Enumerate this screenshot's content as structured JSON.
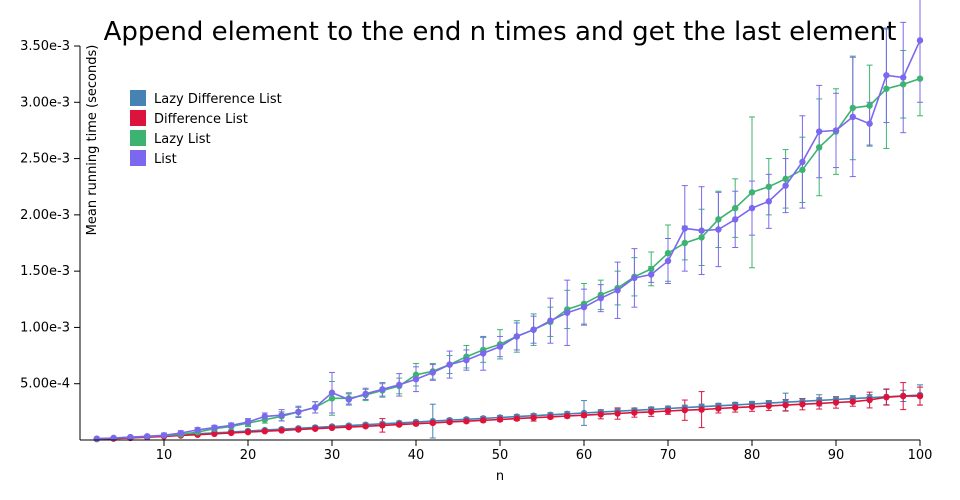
{
  "chart_data": {
    "type": "line",
    "title": "Append element to the end n times and get the last element",
    "xlabel": "n",
    "ylabel": "Mean running time (seconds)",
    "xlim": [
      0,
      100
    ],
    "ylim": [
      0,
      0.0035
    ],
    "x_ticks": [
      10,
      20,
      30,
      40,
      50,
      60,
      70,
      80,
      90,
      100
    ],
    "x_tick_labels": [
      "10",
      "20",
      "30",
      "40",
      "50",
      "60",
      "70",
      "80",
      "90",
      "100"
    ],
    "y_ticks": [
      0.0005,
      0.001,
      0.0015,
      0.002,
      0.0025,
      0.003,
      0.0035
    ],
    "y_tick_labels": [
      "5.00e-4",
      "1.00e-3",
      "1.50e-3",
      "2.00e-3",
      "2.50e-3",
      "3.00e-3",
      "3.50e-3"
    ],
    "grid": false,
    "legend_position": "top-left",
    "x": [
      2,
      4,
      6,
      8,
      10,
      12,
      14,
      16,
      18,
      20,
      22,
      24,
      26,
      28,
      30,
      32,
      34,
      36,
      38,
      40,
      42,
      44,
      46,
      48,
      50,
      52,
      54,
      56,
      58,
      60,
      62,
      64,
      66,
      68,
      70,
      72,
      74,
      76,
      78,
      80,
      82,
      84,
      86,
      88,
      90,
      92,
      94,
      96,
      98,
      100
    ],
    "series": [
      {
        "name": "Lazy Difference List",
        "color": "#4682b4",
        "values": [
          1e-05,
          1.5e-05,
          2.2e-05,
          3e-05,
          3.8e-05,
          4.6e-05,
          5.5e-05,
          6.3e-05,
          7.1e-05,
          8e-05,
          8.8e-05,
          9.6e-05,
          0.000104,
          0.000112,
          0.00012,
          0.000128,
          0.000136,
          0.000144,
          0.000152,
          0.00016,
          0.000168,
          0.000176,
          0.000184,
          0.000192,
          0.0002,
          0.000208,
          0.000216,
          0.000224,
          0.000232,
          0.00024,
          0.000248,
          0.000256,
          0.000264,
          0.000272,
          0.00028,
          0.000288,
          0.000296,
          0.000304,
          0.000312,
          0.00032,
          0.000328,
          0.000336,
          0.000344,
          0.000352,
          0.00036,
          0.000368,
          0.000376,
          0.000384,
          0.000392,
          0.0004
        ],
        "errors": [
          2e-06,
          3e-06,
          4e-06,
          6e-06,
          8e-06,
          8e-06,
          9e-06,
          1e-05,
          1e-05,
          1.1e-05,
          1.1e-05,
          1.2e-05,
          1.2e-05,
          1.3e-05,
          1.3e-05,
          1.4e-05,
          1.4e-05,
          1.4e-05,
          1.5e-05,
          1.5e-05,
          0.00015,
          1.6e-05,
          1.6e-05,
          1.6e-05,
          1.7e-05,
          1.7e-05,
          1.8e-05,
          1.8e-05,
          1.9e-05,
          0.00011,
          1.9e-05,
          2e-05,
          2e-05,
          2.1e-05,
          2.1e-05,
          2.1e-05,
          2.2e-05,
          2.2e-05,
          2.3e-05,
          2.3e-05,
          2.3e-05,
          8e-05,
          2.4e-05,
          5e-05,
          2.5e-05,
          2.6e-05,
          2.7e-05,
          7e-05,
          5e-05,
          9e-05
        ]
      },
      {
        "name": "Difference List",
        "color": "#dc143c",
        "values": [
          8e-06,
          1.2e-05,
          1.8e-05,
          2.5e-05,
          3.2e-05,
          4e-05,
          4.7e-05,
          5.5e-05,
          6.3e-05,
          7e-05,
          7.8e-05,
          8.5e-05,
          9.3e-05,
          0.0001,
          0.000108,
          0.000115,
          0.000122,
          0.00013,
          0.000137,
          0.000145,
          0.000152,
          0.00016,
          0.000167,
          0.000175,
          0.000182,
          0.00019,
          0.000198,
          0.000205,
          0.000213,
          0.00022,
          0.000228,
          0.000235,
          0.000243,
          0.00025,
          0.000258,
          0.000265,
          0.00027,
          0.00028,
          0.000288,
          0.000295,
          0.000303,
          0.00031,
          0.000318,
          0.000325,
          0.000333,
          0.00034,
          0.000355,
          0.00038,
          0.00039,
          0.00039
        ],
        "errors": [
          2e-06,
          2e-06,
          3e-06,
          4e-06,
          5e-06,
          6e-06,
          6e-06,
          7e-06,
          7e-06,
          8e-06,
          8e-06,
          9e-06,
          9e-06,
          1e-05,
          1e-05,
          1.1e-05,
          1.2e-05,
          6e-05,
          1.2e-05,
          1.3e-05,
          1.3e-05,
          1.4e-05,
          1.4e-05,
          1.5e-05,
          1.5e-05,
          1.6e-05,
          3e-05,
          1.6e-05,
          1.7e-05,
          1.7e-05,
          4e-05,
          5e-05,
          4e-05,
          4e-05,
          3e-05,
          9e-05,
          0.00016,
          4e-05,
          4e-05,
          4e-05,
          4e-05,
          5e-05,
          5e-05,
          5e-05,
          5e-05,
          4e-05,
          7e-05,
          7e-05,
          0.00012,
          8e-05
        ]
      },
      {
        "name": "Lazy List",
        "color": "#3cb371",
        "values": [
          1e-05,
          1.8e-05,
          2.5e-05,
          3.2e-05,
          4e-05,
          5e-05,
          7e-05,
          0.0001,
          0.00012,
          0.00015,
          0.00018,
          0.00021,
          0.00025,
          0.00029,
          0.00037,
          0.00037,
          0.0004,
          0.00044,
          0.00048,
          0.00058,
          0.00061,
          0.00067,
          0.00074,
          0.0008,
          0.00085,
          0.00092,
          0.00098,
          0.00105,
          0.00116,
          0.00121,
          0.00129,
          0.00135,
          0.00145,
          0.00152,
          0.00166,
          0.00175,
          0.0018,
          0.00196,
          0.00206,
          0.0022,
          0.00225,
          0.00232,
          0.0024,
          0.0026,
          0.00274,
          0.00295,
          0.00297,
          0.00312,
          0.00316,
          0.00321
        ],
        "errors": [
          3e-06,
          4e-06,
          5e-06,
          6e-06,
          1e-05,
          1e-05,
          1.5e-05,
          2e-05,
          3e-05,
          3e-05,
          3e-05,
          4e-05,
          4e-05,
          5e-05,
          0.00015,
          5e-05,
          5e-05,
          6e-05,
          7e-05,
          0.0001,
          7e-05,
          8e-05,
          0.0001,
          0.00011,
          0.00013,
          0.00014,
          0.00014,
          0.00013,
          0.00017,
          0.00018,
          0.00013,
          0.00015,
          0.00017,
          0.00015,
          0.00025,
          0.00015,
          0.00025,
          0.00025,
          0.00026,
          0.00067,
          0.00025,
          0.00026,
          0.00029,
          0.00043,
          0.00038,
          0.00046,
          0.00036,
          0.00053,
          0.0003,
          0.00033
        ]
      },
      {
        "name": "List",
        "color": "#7b68ee",
        "values": [
          1.2e-05,
          1.8e-05,
          2.5e-05,
          3.3e-05,
          4.2e-05,
          6.2e-05,
          9e-05,
          0.00011,
          0.00013,
          0.00016,
          0.00021,
          0.00022,
          0.00025,
          0.00029,
          0.00042,
          0.00036,
          0.00041,
          0.00045,
          0.00049,
          0.00054,
          0.0006,
          0.00067,
          0.00071,
          0.00077,
          0.00083,
          0.00092,
          0.00098,
          0.00106,
          0.00113,
          0.00118,
          0.00126,
          0.00133,
          0.00144,
          0.00147,
          0.00159,
          0.00188,
          0.00186,
          0.00187,
          0.00196,
          0.00206,
          0.00212,
          0.00226,
          0.00247,
          0.00274,
          0.00275,
          0.00287,
          0.00281,
          0.00324,
          0.00322,
          0.00355
        ],
        "errors": [
          3e-06,
          4e-06,
          5e-06,
          7e-06,
          2e-05,
          2e-05,
          2e-05,
          2e-05,
          2e-05,
          3e-05,
          3e-05,
          5e-05,
          5e-05,
          5e-05,
          0.00018,
          5e-05,
          5e-05,
          6e-05,
          0.0001,
          0.00011,
          7e-05,
          0.00012,
          9e-05,
          0.00015,
          9e-05,
          0.00012,
          0.00012,
          0.0002,
          0.00029,
          0.00016,
          0.00012,
          0.00025,
          0.00026,
          7e-05,
          0.0002,
          0.00038,
          0.00039,
          0.00033,
          0.00025,
          0.00024,
          0.00024,
          0.00024,
          0.00041,
          0.00041,
          0.00033,
          0.00053,
          0.00019,
          0.00042,
          0.00049,
          0.00055
        ]
      }
    ]
  }
}
